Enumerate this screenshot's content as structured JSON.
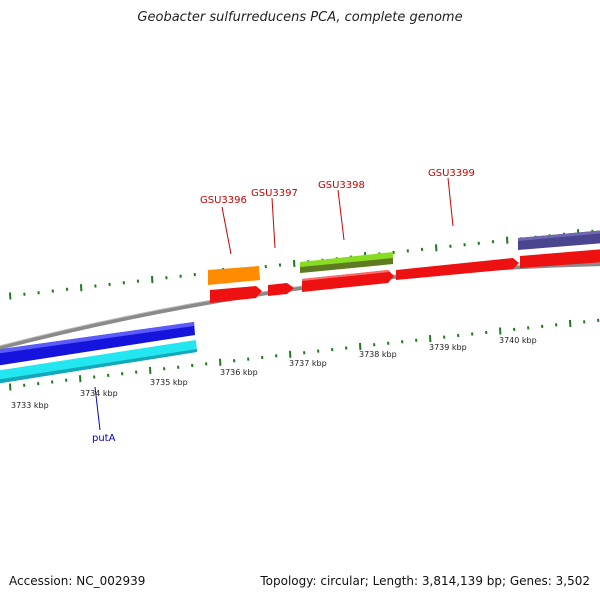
{
  "title": "Geobacter sulfurreducens PCA, complete genome",
  "accession_label": "Accession: NC_002939",
  "topology_label": "Topology: circular; Length: 3,814,139 bp; Genes: 3,502",
  "scale_ticks": [
    {
      "label": "3733 kbp"
    },
    {
      "label": "3734 kbp"
    },
    {
      "label": "3735 kbp"
    },
    {
      "label": "3736 kbp"
    },
    {
      "label": "3737 kbp"
    },
    {
      "label": "3738 kbp"
    },
    {
      "label": "3739 kbp"
    },
    {
      "label": "3740 kbp"
    }
  ],
  "gene_labels": {
    "gsu3396": "GSU3396",
    "gsu3397": "GSU3397",
    "gsu3398": "GSU3398",
    "gsu3399": "GSU3399",
    "puta": "putA"
  },
  "colors": {
    "label_red": "#cc0000",
    "label_blue": "#0000cc",
    "tick_green": "#1e7a1e",
    "backbone": "#8a8a8a",
    "gene_red": "#ee1111",
    "gene_orange": "#ff8c00",
    "gene_lime": "#88dd22",
    "gene_olive": "#5e7a22",
    "gene_blue": "#1414dd",
    "gene_cyan": "#22e6f0",
    "gene_slate": "#4b4590"
  }
}
